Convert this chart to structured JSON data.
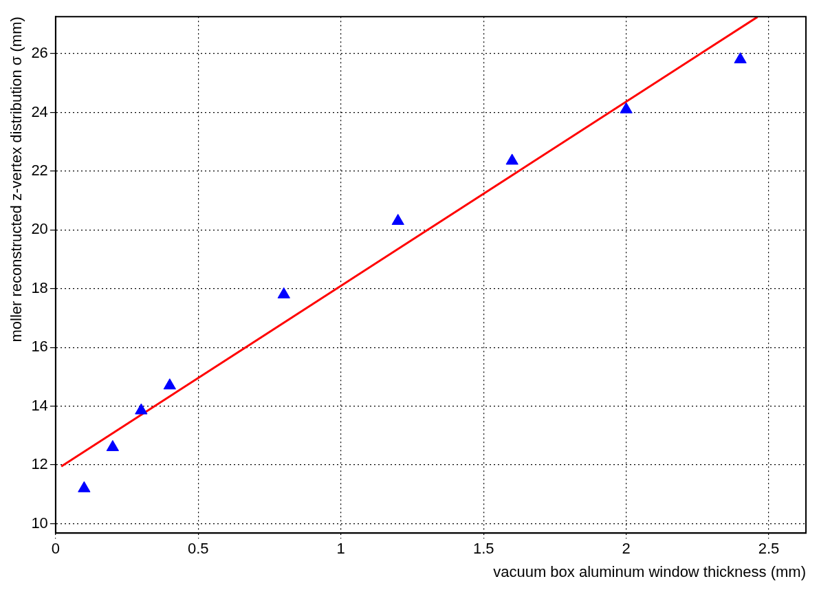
{
  "chart_data": {
    "type": "scatter",
    "xlabel": "vacuum box aluminum window thickness (mm)",
    "ylabel": "moller reconstructed z-vertex distribution σ (mm)",
    "xlim": [
      0,
      2.63
    ],
    "ylim": [
      9.68,
      27.26
    ],
    "xticks": [
      0,
      0.5,
      1,
      1.5,
      2,
      2.5
    ],
    "yticks": [
      10,
      12,
      14,
      16,
      18,
      20,
      22,
      24,
      26
    ],
    "grid": true,
    "series": [
      {
        "marker": "triangle",
        "color": "#0000ff",
        "x": [
          0.1,
          0.2,
          0.3,
          0.4,
          0.8,
          1.2,
          1.6,
          2.0,
          2.4
        ],
        "values": [
          11.2,
          12.6,
          13.85,
          14.7,
          17.8,
          20.3,
          22.35,
          24.1,
          25.8
        ]
      },
      {
        "type": "line",
        "color": "#ff0000",
        "x": [
          0.02,
          2.46
        ],
        "values": [
          11.95,
          27.25
        ]
      }
    ]
  }
}
